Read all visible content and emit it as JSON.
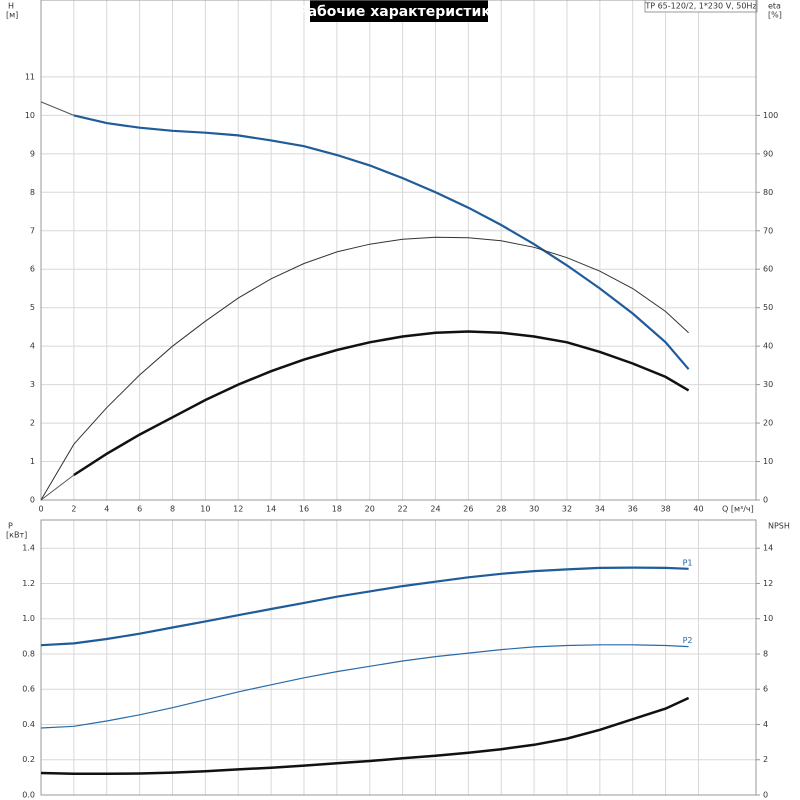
{
  "chart_data": [
    {
      "type": "line",
      "title": "Рабочие характеристики",
      "annotation": "TP 65-120/2, 1*230 V, 50Hz",
      "ylabel": "H",
      "yunit": "[м]",
      "y2label": "eta",
      "y2unit": "[%]",
      "xlabel": "Q [м³/ч]",
      "xlim": [
        0,
        43.5
      ],
      "xticks": [
        0,
        2,
        4,
        6,
        8,
        10,
        12,
        14,
        16,
        18,
        20,
        22,
        24,
        26,
        28,
        30,
        32,
        34,
        36,
        38,
        40
      ],
      "ylim": [
        0,
        13
      ],
      "yticks": [
        0,
        1,
        2,
        3,
        4,
        5,
        6,
        7,
        8,
        9,
        10,
        11
      ],
      "y2lim": [
        0,
        130
      ],
      "y2ticks": [
        0,
        10,
        20,
        30,
        40,
        50,
        60,
        70,
        80,
        90,
        100
      ],
      "grid": true,
      "x": [
        0,
        2,
        4,
        6,
        8,
        10,
        12,
        14,
        16,
        18,
        20,
        22,
        24,
        26,
        28,
        30,
        32,
        34,
        36,
        38,
        39.4
      ],
      "series": [
        {
          "color": "#555555",
          "width": 1,
          "values": [
            10.35,
            10,
            null,
            null,
            null,
            null,
            null,
            null,
            null,
            null,
            null,
            null,
            null,
            null,
            null,
            null,
            null,
            null,
            null,
            null,
            null
          ]
        },
        {
          "color": "#1f5c99",
          "width": 2.2,
          "values": [
            null,
            10,
            9.8,
            9.68,
            9.6,
            9.55,
            9.48,
            9.35,
            9.2,
            8.97,
            8.7,
            8.37,
            8.0,
            7.6,
            7.15,
            6.65,
            6.1,
            5.5,
            4.85,
            4.1,
            3.4
          ]
        },
        {
          "color": "#333333",
          "width": 1,
          "axis": "y2",
          "values": [
            0,
            14.5,
            24,
            32.5,
            40,
            46.5,
            52.5,
            57.5,
            61.5,
            64.5,
            66.5,
            67.8,
            68.3,
            68.2,
            67.4,
            65.7,
            63,
            59.5,
            55,
            49,
            43.5
          ]
        },
        {
          "color": "#555555",
          "width": 1,
          "axis": "y2",
          "values": [
            0,
            6.5,
            null,
            null,
            null,
            null,
            null,
            null,
            null,
            null,
            null,
            null,
            null,
            null,
            null,
            null,
            null,
            null,
            null,
            null,
            null
          ]
        },
        {
          "color": "#111111",
          "width": 2.5,
          "axis": "y2",
          "values": [
            null,
            6.5,
            12,
            17,
            21.5,
            26,
            30,
            33.5,
            36.5,
            39,
            41,
            42.5,
            43.5,
            43.8,
            43.5,
            42.5,
            41,
            38.5,
            35.5,
            32,
            28.5
          ]
        }
      ]
    },
    {
      "type": "line",
      "ylabel": "P",
      "yunit": "[кВт]",
      "y2label": "NPSH",
      "xlim": [
        0,
        43.5
      ],
      "ylim": [
        0,
        1.56
      ],
      "yticks": [
        {
          "value": 0,
          "label": "0.0"
        },
        0.2,
        0.4,
        0.6,
        0.8,
        {
          "value": 1,
          "label": "1.0"
        },
        1.2,
        1.4
      ],
      "y2lim": [
        0,
        15.6
      ],
      "y2ticks": [
        0,
        2,
        4,
        6,
        8,
        10,
        12,
        14
      ],
      "grid": true,
      "x": [
        0,
        2,
        4,
        6,
        8,
        10,
        12,
        14,
        16,
        18,
        20,
        22,
        24,
        26,
        28,
        30,
        32,
        34,
        36,
        38,
        39.4
      ],
      "series": [
        {
          "name": "P1",
          "color": "#1f5c99",
          "width": 2.2,
          "values": [
            0.85,
            0.86,
            0.885,
            0.915,
            0.95,
            0.985,
            1.02,
            1.055,
            1.09,
            1.125,
            1.155,
            1.185,
            1.21,
            1.235,
            1.255,
            1.27,
            1.28,
            1.288,
            1.29,
            1.288,
            1.283
          ]
        },
        {
          "name": "P2",
          "color": "#2a6aa8",
          "width": 1.2,
          "values": [
            0.38,
            0.39,
            0.42,
            0.455,
            0.495,
            0.54,
            0.585,
            0.625,
            0.665,
            0.7,
            0.73,
            0.76,
            0.785,
            0.805,
            0.825,
            0.84,
            0.848,
            0.852,
            0.852,
            0.848,
            0.842
          ]
        },
        {
          "color": "#111111",
          "width": 2.5,
          "axis": "y2",
          "values": [
            1.25,
            1.2,
            1.2,
            1.22,
            1.27,
            1.35,
            1.45,
            1.55,
            1.67,
            1.8,
            1.93,
            2.08,
            2.23,
            2.4,
            2.6,
            2.85,
            3.2,
            3.7,
            4.3,
            4.9,
            5.5
          ]
        }
      ]
    }
  ]
}
